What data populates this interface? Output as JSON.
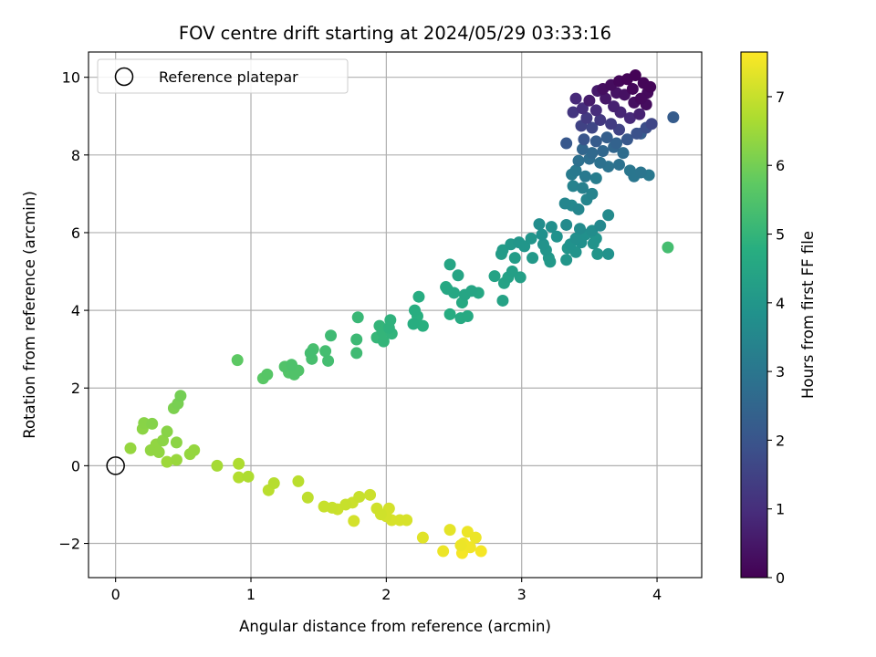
{
  "chart_data": {
    "type": "scatter",
    "title": "FOV centre drift starting at 2024/05/29 03:33:16",
    "xlabel": "Angular distance from reference (arcmin)",
    "ylabel": "Rotation from reference (arcmin)",
    "xlim": [
      -0.2,
      4.33
    ],
    "ylim": [
      -2.88,
      10.65
    ],
    "xticks": [
      0,
      1,
      2,
      3,
      4
    ],
    "yticks": [
      -2,
      0,
      2,
      4,
      6,
      8,
      10
    ],
    "xtick_labels": [
      "0",
      "1",
      "2",
      "3",
      "4"
    ],
    "ytick_labels": [
      "−2",
      "0",
      "2",
      "4",
      "6",
      "8",
      "10"
    ],
    "grid": true,
    "legend": {
      "placement": "top-left",
      "entries": [
        "Reference platepar"
      ]
    },
    "reference_point": {
      "x": 0,
      "y": 0,
      "marker": "open-circle",
      "color": "#000000"
    },
    "colorbar": {
      "label": "Hours from first FF file",
      "colormap": "viridis",
      "range": [
        0,
        7.65
      ],
      "ticks": [
        0,
        1,
        2,
        3,
        4,
        5,
        6,
        7
      ],
      "tick_labels": [
        "0",
        "1",
        "2",
        "3",
        "4",
        "5",
        "6",
        "7"
      ]
    },
    "points": [
      [
        3.78,
        9.95,
        0.08
      ],
      [
        3.84,
        10.05,
        0.05
      ],
      [
        3.9,
        9.85,
        0.1
      ],
      [
        3.72,
        9.9,
        0.12
      ],
      [
        3.82,
        9.7,
        0.15
      ],
      [
        3.93,
        9.6,
        0.2
      ],
      [
        3.95,
        9.75,
        0.1
      ],
      [
        3.66,
        9.8,
        0.25
      ],
      [
        3.6,
        9.7,
        0.3
      ],
      [
        3.88,
        9.45,
        0.2
      ],
      [
        3.76,
        9.55,
        0.35
      ],
      [
        3.7,
        9.6,
        0.4
      ],
      [
        3.56,
        9.65,
        0.55
      ],
      [
        3.5,
        9.4,
        0.6
      ],
      [
        3.62,
        9.45,
        0.5
      ],
      [
        3.83,
        9.35,
        0.3
      ],
      [
        3.92,
        9.3,
        0.25
      ],
      [
        3.68,
        9.25,
        0.7
      ],
      [
        3.4,
        9.45,
        0.9
      ],
      [
        3.45,
        9.2,
        1.0
      ],
      [
        3.55,
        9.15,
        0.95
      ],
      [
        3.73,
        9.1,
        0.8
      ],
      [
        3.8,
        8.95,
        0.9
      ],
      [
        3.87,
        9.05,
        0.7
      ],
      [
        4.12,
        8.97,
        2.2
      ],
      [
        3.38,
        9.1,
        1.2
      ],
      [
        3.48,
        8.95,
        1.3
      ],
      [
        3.58,
        8.9,
        1.25
      ],
      [
        3.66,
        8.8,
        1.35
      ],
      [
        3.44,
        8.75,
        1.5
      ],
      [
        3.52,
        8.7,
        1.6
      ],
      [
        3.72,
        8.65,
        1.5
      ],
      [
        3.92,
        8.7,
        1.8
      ],
      [
        3.85,
        8.55,
        1.9
      ],
      [
        3.96,
        8.8,
        1.6
      ],
      [
        3.33,
        8.3,
        2.1
      ],
      [
        3.46,
        8.4,
        2.0
      ],
      [
        3.55,
        8.35,
        2.2
      ],
      [
        3.63,
        8.45,
        2.3
      ],
      [
        3.7,
        8.3,
        2.4
      ],
      [
        3.78,
        8.4,
        2.1
      ],
      [
        3.88,
        8.55,
        2.2
      ],
      [
        3.45,
        8.15,
        2.5
      ],
      [
        3.52,
        8.05,
        2.6
      ],
      [
        3.6,
        8.1,
        2.55
      ],
      [
        3.68,
        8.2,
        2.5
      ],
      [
        3.75,
        8.05,
        2.7
      ],
      [
        3.42,
        7.85,
        2.8
      ],
      [
        3.5,
        7.9,
        2.75
      ],
      [
        3.58,
        7.8,
        2.85
      ],
      [
        3.64,
        7.7,
        2.9
      ],
      [
        3.72,
        7.75,
        2.85
      ],
      [
        3.8,
        7.6,
        3.0
      ],
      [
        3.88,
        7.55,
        2.95
      ],
      [
        3.94,
        7.48,
        3.05
      ],
      [
        3.4,
        7.6,
        3.1
      ],
      [
        3.37,
        7.5,
        3.15
      ],
      [
        3.47,
        7.45,
        3.1
      ],
      [
        3.55,
        7.4,
        3.2
      ],
      [
        3.83,
        7.45,
        3.0
      ],
      [
        3.45,
        7.15,
        3.3
      ],
      [
        3.38,
        7.2,
        3.35
      ],
      [
        3.52,
        7.0,
        3.4
      ],
      [
        3.48,
        6.85,
        3.45
      ],
      [
        3.32,
        6.75,
        3.5
      ],
      [
        3.37,
        6.7,
        3.55
      ],
      [
        3.42,
        6.6,
        3.5
      ],
      [
        3.64,
        6.45,
        3.6
      ],
      [
        3.13,
        6.22,
        3.7
      ],
      [
        3.22,
        6.15,
        3.75
      ],
      [
        3.33,
        6.2,
        3.6
      ],
      [
        3.43,
        6.1,
        3.65
      ],
      [
        3.52,
        6.05,
        3.7
      ],
      [
        3.58,
        6.18,
        3.55
      ],
      [
        3.15,
        5.95,
        3.8
      ],
      [
        3.26,
        5.9,
        3.85
      ],
      [
        3.4,
        5.85,
        3.75
      ],
      [
        3.47,
        5.95,
        3.8
      ],
      [
        3.55,
        5.85,
        3.9
      ],
      [
        3.07,
        5.85,
        3.95
      ],
      [
        2.98,
        5.75,
        4.0
      ],
      [
        3.16,
        5.7,
        3.9
      ],
      [
        3.36,
        5.7,
        3.85
      ],
      [
        3.44,
        5.75,
        3.8
      ],
      [
        3.53,
        5.72,
        3.9
      ],
      [
        2.92,
        5.7,
        4.05
      ],
      [
        3.02,
        5.65,
        4.0
      ],
      [
        3.18,
        5.55,
        4.0
      ],
      [
        3.34,
        5.6,
        3.95
      ],
      [
        3.4,
        5.5,
        3.9
      ],
      [
        3.56,
        5.45,
        3.95
      ],
      [
        3.64,
        5.45,
        3.85
      ],
      [
        4.08,
        5.62,
        5.3
      ],
      [
        2.86,
        5.55,
        4.15
      ],
      [
        2.85,
        5.45,
        4.2
      ],
      [
        2.95,
        5.35,
        4.2
      ],
      [
        3.08,
        5.35,
        4.1
      ],
      [
        3.2,
        5.35,
        4.05
      ],
      [
        3.33,
        5.3,
        4.0
      ],
      [
        3.21,
        5.25,
        4.1
      ],
      [
        2.47,
        5.18,
        4.5
      ],
      [
        2.93,
        5.0,
        4.3
      ],
      [
        2.9,
        4.85,
        4.35
      ],
      [
        2.8,
        4.88,
        4.4
      ],
      [
        2.99,
        4.85,
        4.3
      ],
      [
        2.87,
        4.7,
        4.4
      ],
      [
        2.53,
        4.9,
        4.45
      ],
      [
        2.44,
        4.6,
        4.6
      ],
      [
        2.5,
        4.45,
        4.55
      ],
      [
        2.58,
        4.4,
        4.5
      ],
      [
        2.63,
        4.5,
        4.5
      ],
      [
        2.68,
        4.45,
        4.55
      ],
      [
        2.45,
        4.55,
        4.55
      ],
      [
        2.56,
        4.2,
        4.6
      ],
      [
        2.24,
        4.35,
        4.7
      ],
      [
        2.86,
        4.25,
        4.4
      ],
      [
        2.21,
        4.0,
        4.75
      ],
      [
        2.23,
        3.85,
        4.8
      ],
      [
        2.47,
        3.9,
        4.7
      ],
      [
        2.55,
        3.8,
        4.65
      ],
      [
        2.6,
        3.85,
        4.6
      ],
      [
        2.03,
        3.75,
        4.9
      ],
      [
        1.95,
        3.6,
        5.0
      ],
      [
        2.02,
        3.55,
        4.9
      ],
      [
        2.2,
        3.65,
        4.75
      ],
      [
        2.27,
        3.6,
        4.8
      ],
      [
        1.79,
        3.82,
        5.1
      ],
      [
        1.97,
        3.45,
        5.0
      ],
      [
        2.04,
        3.4,
        4.95
      ],
      [
        1.93,
        3.3,
        5.05
      ],
      [
        1.98,
        3.2,
        5.0
      ],
      [
        1.59,
        3.35,
        5.2
      ],
      [
        1.78,
        3.25,
        5.15
      ],
      [
        1.46,
        3.0,
        5.35
      ],
      [
        1.55,
        2.95,
        5.3
      ],
      [
        1.44,
        2.9,
        5.3
      ],
      [
        1.78,
        2.9,
        5.2
      ],
      [
        1.45,
        2.75,
        5.35
      ],
      [
        1.57,
        2.7,
        5.3
      ],
      [
        0.9,
        2.72,
        5.7
      ],
      [
        1.25,
        2.55,
        5.5
      ],
      [
        1.3,
        2.6,
        5.45
      ],
      [
        1.35,
        2.45,
        5.5
      ],
      [
        1.28,
        2.4,
        5.55
      ],
      [
        1.32,
        2.35,
        5.5
      ],
      [
        1.12,
        2.35,
        5.6
      ],
      [
        1.09,
        2.25,
        5.65
      ],
      [
        0.48,
        1.8,
        6.0
      ],
      [
        0.46,
        1.6,
        6.05
      ],
      [
        0.43,
        1.48,
        6.1
      ],
      [
        0.21,
        1.1,
        6.25
      ],
      [
        0.27,
        1.08,
        6.2
      ],
      [
        0.2,
        0.95,
        6.3
      ],
      [
        0.11,
        0.45,
        6.4
      ],
      [
        0.35,
        0.65,
        6.3
      ],
      [
        0.3,
        0.55,
        6.35
      ],
      [
        0.38,
        0.88,
        6.25
      ],
      [
        0.45,
        0.6,
        6.3
      ],
      [
        0.26,
        0.4,
        6.35
      ],
      [
        0.32,
        0.35,
        6.35
      ],
      [
        0.58,
        0.4,
        6.4
      ],
      [
        0.55,
        0.3,
        6.4
      ],
      [
        0.38,
        0.1,
        6.5
      ],
      [
        0.45,
        0.15,
        6.45
      ],
      [
        0.75,
        0.0,
        6.6
      ],
      [
        0.91,
        0.05,
        6.7
      ],
      [
        0.91,
        -0.3,
        6.75
      ],
      [
        0.98,
        -0.28,
        6.7
      ],
      [
        1.17,
        -0.45,
        6.8
      ],
      [
        1.13,
        -0.63,
        6.85
      ],
      [
        1.35,
        -0.4,
        6.85
      ],
      [
        1.42,
        -0.82,
        6.9
      ],
      [
        1.54,
        -1.05,
        7.0
      ],
      [
        1.6,
        -1.08,
        7.0
      ],
      [
        1.64,
        -1.12,
        7.05
      ],
      [
        1.7,
        -1.0,
        7.0
      ],
      [
        1.75,
        -0.95,
        7.05
      ],
      [
        1.8,
        -0.8,
        7.0
      ],
      [
        1.88,
        -0.75,
        7.05
      ],
      [
        1.93,
        -1.1,
        7.1
      ],
      [
        1.96,
        -1.25,
        7.1
      ],
      [
        2.02,
        -1.1,
        7.15
      ],
      [
        2.0,
        -1.3,
        7.15
      ],
      [
        2.04,
        -1.4,
        7.2
      ],
      [
        2.1,
        -1.4,
        7.2
      ],
      [
        2.15,
        -1.4,
        7.2
      ],
      [
        1.76,
        -1.42,
        7.15
      ],
      [
        2.27,
        -1.85,
        7.3
      ],
      [
        2.42,
        -2.2,
        7.45
      ],
      [
        2.47,
        -1.65,
        7.35
      ],
      [
        2.55,
        -2.05,
        7.45
      ],
      [
        2.57,
        -2.0,
        7.5
      ],
      [
        2.6,
        -1.7,
        7.45
      ],
      [
        2.62,
        -2.1,
        7.5
      ],
      [
        2.66,
        -1.85,
        7.45
      ],
      [
        2.7,
        -2.2,
        7.55
      ],
      [
        2.56,
        -2.25,
        7.55
      ]
    ]
  }
}
